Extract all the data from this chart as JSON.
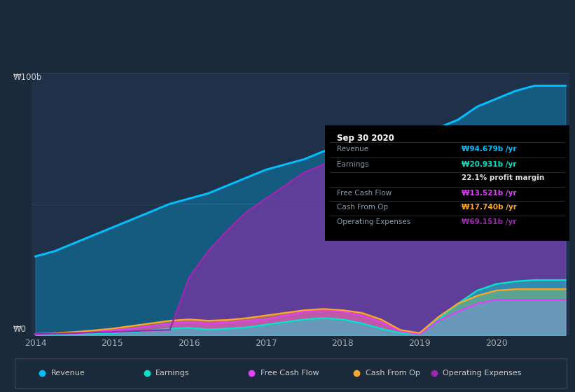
{
  "bg_color": "#1b2a3b",
  "chart_bg": "#1e3148",
  "title": "Sep 30 2020",
  "info_rows": [
    {
      "label": "Revenue",
      "value": "₩94.679b /yr",
      "color": "#00bfff"
    },
    {
      "label": "Earnings",
      "value": "₩20.931b /yr",
      "color": "#00e5cc"
    },
    {
      "label": "",
      "value": "22.1% profit margin",
      "color": "#dddddd"
    },
    {
      "label": "Free Cash Flow",
      "value": "₩13.521b /yr",
      "color": "#e040fb"
    },
    {
      "label": "Cash From Op",
      "value": "₩17.740b /yr",
      "color": "#ffa726"
    },
    {
      "label": "Operating Expenses",
      "value": "₩69.151b /yr",
      "color": "#9c27b0"
    }
  ],
  "years": [
    2014.0,
    2014.25,
    2014.5,
    2014.75,
    2015.0,
    2015.25,
    2015.5,
    2015.75,
    2016.0,
    2016.25,
    2016.5,
    2016.75,
    2017.0,
    2017.25,
    2017.5,
    2017.75,
    2018.0,
    2018.25,
    2018.5,
    2018.75,
    2019.0,
    2019.25,
    2019.5,
    2019.75,
    2020.0,
    2020.25,
    2020.5,
    2020.75,
    2020.9
  ],
  "revenue": [
    30,
    32,
    35,
    38,
    41,
    44,
    47,
    50,
    52,
    54,
    57,
    60,
    63,
    65,
    67,
    70,
    72,
    74,
    75,
    76,
    77,
    79,
    82,
    87,
    90,
    93,
    95,
    95,
    95
  ],
  "earnings": [
    0.3,
    0.4,
    0.5,
    0.6,
    0.8,
    1.2,
    1.8,
    2.5,
    2.8,
    2.2,
    2.5,
    3.0,
    4.0,
    5.0,
    6.0,
    6.5,
    6.0,
    4.5,
    2.5,
    0.8,
    0.3,
    6.0,
    12.0,
    17.0,
    19.5,
    20.5,
    21.0,
    21.0,
    21.0
  ],
  "free_cash_flow": [
    0.3,
    0.5,
    0.7,
    1.2,
    1.8,
    2.5,
    3.5,
    4.5,
    5.0,
    4.5,
    4.8,
    5.5,
    6.0,
    7.5,
    9.0,
    9.5,
    9.0,
    7.5,
    5.0,
    1.5,
    0.3,
    5.5,
    9.0,
    12.0,
    13.5,
    13.5,
    13.5,
    13.5,
    13.5
  ],
  "cash_from_op": [
    0.5,
    0.8,
    1.2,
    1.8,
    2.5,
    3.5,
    4.5,
    5.5,
    6.0,
    5.5,
    5.8,
    6.5,
    7.5,
    8.5,
    9.5,
    10.0,
    9.5,
    8.5,
    6.0,
    2.0,
    0.8,
    7.0,
    12.0,
    15.0,
    17.0,
    17.5,
    17.5,
    17.5,
    17.5
  ],
  "op_expenses": [
    0.5,
    0.6,
    0.8,
    1.0,
    1.2,
    1.5,
    1.8,
    2.0,
    22.0,
    32.0,
    40.0,
    47.0,
    52.0,
    57.0,
    62.0,
    65.0,
    67.0,
    67.5,
    66.0,
    62.0,
    57.0,
    59.0,
    62.0,
    65.0,
    68.0,
    70.0,
    69.5,
    69.0,
    69.0
  ],
  "ylim": [
    0,
    100
  ],
  "ylabel_top": "₩100b",
  "ylabel_bot": "₩0",
  "xlabel_ticks": [
    2014,
    2015,
    2016,
    2017,
    2018,
    2019,
    2020
  ],
  "legend_items": [
    {
      "label": "Revenue",
      "color": "#00bfff"
    },
    {
      "label": "Earnings",
      "color": "#00e5cc"
    },
    {
      "label": "Free Cash Flow",
      "color": "#e040fb"
    },
    {
      "label": "Cash From Op",
      "color": "#ffa726"
    },
    {
      "label": "Operating Expenses",
      "color": "#9c27b0"
    }
  ],
  "revenue_color": "#00bfff",
  "earnings_color": "#00e5cc",
  "fcf_color": "#e040fb",
  "cfop_color": "#ffa726",
  "opex_color": "#9c27b0",
  "label_color": "#8899aa"
}
